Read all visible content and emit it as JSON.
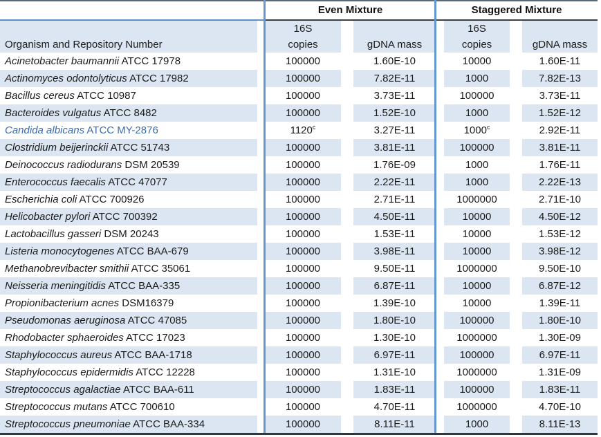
{
  "title_row": {
    "even": "Even Mixture",
    "staggered": "Staggered Mixture"
  },
  "header": {
    "organism": "Organism and Repository Number",
    "subcol_line1": "16S",
    "subcol_copies": "copies",
    "subcol_gdna": "gDNA mass"
  },
  "colors": {
    "stripe": "#dce6f2",
    "grid_blue": "#6397cd",
    "top_rule": "#55687c",
    "header_rule_dark": "#3d3d3d",
    "header_rule_blue": "#5e90c6",
    "bottom_rule": "#2e3640",
    "highlight_text": "#3a6bb0",
    "text": "#1a1a1a"
  },
  "footnote_marker": "c",
  "rows": [
    {
      "name": "Acinetobacter baumannii",
      "id": "ATCC 17978",
      "even_copies": "100000",
      "even_sup": "",
      "even_gdna": "1.60E-10",
      "stag_copies": "10000",
      "stag_sup": "",
      "stag_gdna": "1.60E-11",
      "highlight": false
    },
    {
      "name": "Actinomyces odontolyticus",
      "id": "ATCC 17982",
      "even_copies": "100000",
      "even_sup": "",
      "even_gdna": "7.82E-11",
      "stag_copies": "1000",
      "stag_sup": "",
      "stag_gdna": "7.82E-13",
      "highlight": false
    },
    {
      "name": "Bacillus cereus",
      "id": "ATCC 10987",
      "even_copies": "100000",
      "even_sup": "",
      "even_gdna": "3.73E-11",
      "stag_copies": "100000",
      "stag_sup": "",
      "stag_gdna": "3.73E-11",
      "highlight": false
    },
    {
      "name": "Bacteroides vulgatus",
      "id": "ATCC 8482",
      "even_copies": "100000",
      "even_sup": "",
      "even_gdna": "1.52E-10",
      "stag_copies": "1000",
      "stag_sup": "",
      "stag_gdna": "1.52E-12",
      "highlight": false
    },
    {
      "name": "Candida albicans",
      "id": "ATCC MY-2876",
      "even_copies": "1120",
      "even_sup": "c",
      "even_gdna": "3.27E-11",
      "stag_copies": "1000",
      "stag_sup": "c",
      "stag_gdna": "2.92E-11",
      "highlight": true
    },
    {
      "name": "Clostridium beijerinckii",
      "id": "ATCC 51743",
      "even_copies": "100000",
      "even_sup": "",
      "even_gdna": "3.81E-11",
      "stag_copies": "100000",
      "stag_sup": "",
      "stag_gdna": "3.81E-11",
      "highlight": false
    },
    {
      "name": "Deinococcus radiodurans",
      "id": "DSM 20539",
      "even_copies": "100000",
      "even_sup": "",
      "even_gdna": "1.76E-09",
      "stag_copies": "1000",
      "stag_sup": "",
      "stag_gdna": "1.76E-11",
      "highlight": false
    },
    {
      "name": "Enterococcus faecalis",
      "id": "ATCC 47077",
      "even_copies": "100000",
      "even_sup": "",
      "even_gdna": "2.22E-11",
      "stag_copies": "1000",
      "stag_sup": "",
      "stag_gdna": "2.22E-13",
      "highlight": false
    },
    {
      "name": "Escherichia coli",
      "id": "ATCC 700926",
      "even_copies": "100000",
      "even_sup": "",
      "even_gdna": "2.71E-11",
      "stag_copies": "1000000",
      "stag_sup": "",
      "stag_gdna": "2.71E-10",
      "highlight": false
    },
    {
      "name": "Helicobacter pylori",
      "id": "ATCC 700392",
      "even_copies": "100000",
      "even_sup": "",
      "even_gdna": "4.50E-11",
      "stag_copies": "10000",
      "stag_sup": "",
      "stag_gdna": "4.50E-12",
      "highlight": false
    },
    {
      "name": "Lactobacillus gasseri",
      "id": "DSM 20243",
      "even_copies": "100000",
      "even_sup": "",
      "even_gdna": "1.53E-11",
      "stag_copies": "10000",
      "stag_sup": "",
      "stag_gdna": "1.53E-12",
      "highlight": false
    },
    {
      "name": "Listeria monocytogenes",
      "id": "ATCC BAA-679",
      "even_copies": "100000",
      "even_sup": "",
      "even_gdna": "3.98E-11",
      "stag_copies": "10000",
      "stag_sup": "",
      "stag_gdna": "3.98E-12",
      "highlight": false
    },
    {
      "name": "Methanobrevibacter smithii",
      "id": "ATCC 35061",
      "even_copies": "100000",
      "even_sup": "",
      "even_gdna": "9.50E-11",
      "stag_copies": "1000000",
      "stag_sup": "",
      "stag_gdna": "9.50E-10",
      "highlight": false
    },
    {
      "name": "Neisseria meningitidis",
      "id": "ATCC BAA-335",
      "even_copies": "100000",
      "even_sup": "",
      "even_gdna": "6.87E-11",
      "stag_copies": "10000",
      "stag_sup": "",
      "stag_gdna": "6.87E-12",
      "highlight": false
    },
    {
      "name": "Propionibacterium acnes",
      "id": "DSM16379",
      "even_copies": "100000",
      "even_sup": "",
      "even_gdna": "1.39E-10",
      "stag_copies": "10000",
      "stag_sup": "",
      "stag_gdna": "1.39E-11",
      "highlight": false
    },
    {
      "name": "Pseudomonas aeruginosa",
      "id": "ATCC 47085",
      "even_copies": "100000",
      "even_sup": "",
      "even_gdna": "1.80E-10",
      "stag_copies": "100000",
      "stag_sup": "",
      "stag_gdna": "1.80E-10",
      "highlight": false
    },
    {
      "name": "Rhodobacter sphaeroides",
      "id": "ATCC 17023",
      "even_copies": "100000",
      "even_sup": "",
      "even_gdna": "1.30E-10",
      "stag_copies": "1000000",
      "stag_sup": "",
      "stag_gdna": "1.30E-09",
      "highlight": false
    },
    {
      "name": "Staphylococcus aureus",
      "id": "ATCC BAA-1718",
      "even_copies": "100000",
      "even_sup": "",
      "even_gdna": "6.97E-11",
      "stag_copies": "100000",
      "stag_sup": "",
      "stag_gdna": "6.97E-11",
      "highlight": false
    },
    {
      "name": "Staphylococcus epidermidis",
      "id": "ATCC 12228",
      "even_copies": "100000",
      "even_sup": "",
      "even_gdna": "1.31E-10",
      "stag_copies": "1000000",
      "stag_sup": "",
      "stag_gdna": "1.31E-09",
      "highlight": false
    },
    {
      "name": "Streptococcus agalactiae",
      "id": "ATCC BAA-611",
      "even_copies": "100000",
      "even_sup": "",
      "even_gdna": "1.83E-11",
      "stag_copies": "100000",
      "stag_sup": "",
      "stag_gdna": "1.83E-11",
      "highlight": false
    },
    {
      "name": "Streptococcus mutans",
      "id": "ATCC 700610",
      "even_copies": "100000",
      "even_sup": "",
      "even_gdna": "4.70E-11",
      "stag_copies": "1000000",
      "stag_sup": "",
      "stag_gdna": "4.70E-10",
      "highlight": false
    },
    {
      "name": "Streptococcus pneumoniae",
      "id": "ATCC BAA-334",
      "even_copies": "100000",
      "even_sup": "",
      "even_gdna": "8.11E-11",
      "stag_copies": "1000",
      "stag_sup": "",
      "stag_gdna": "8.11E-13",
      "highlight": false
    }
  ]
}
